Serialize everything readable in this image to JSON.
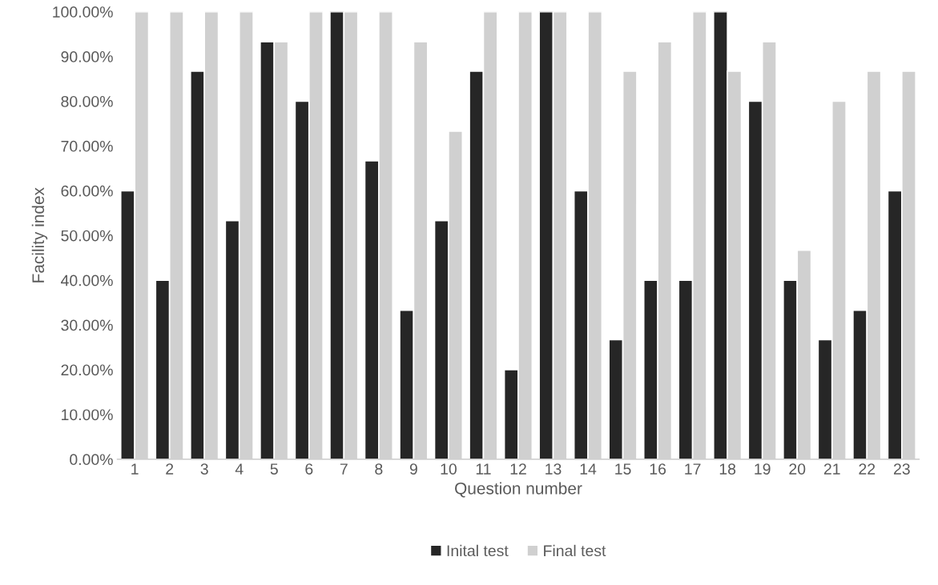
{
  "chart_data": {
    "type": "bar",
    "xlabel": "Question number",
    "ylabel": "Facility index",
    "categories": [
      "1",
      "2",
      "3",
      "4",
      "5",
      "6",
      "7",
      "8",
      "9",
      "10",
      "11",
      "12",
      "13",
      "14",
      "15",
      "16",
      "17",
      "18",
      "19",
      "20",
      "21",
      "22",
      "23"
    ],
    "series": [
      {
        "name": "Inital test",
        "color": "#262626",
        "values": [
          60,
          40,
          86.7,
          53.3,
          93.3,
          80,
          100,
          66.7,
          33.3,
          53.3,
          86.7,
          20,
          100,
          60,
          26.7,
          40,
          40,
          100,
          80,
          40,
          26.7,
          33.3,
          60
        ]
      },
      {
        "name": "Final test",
        "color": "#d0d0d0",
        "values": [
          100,
          100,
          100,
          100,
          93.3,
          100,
          100,
          100,
          93.3,
          73.3,
          100,
          100,
          100,
          100,
          86.7,
          93.3,
          100,
          86.7,
          93.3,
          46.7,
          80,
          86.7,
          86.7
        ]
      }
    ],
    "ylim": [
      0,
      100
    ],
    "yticks": [
      {
        "value": 0,
        "label": "0.00%"
      },
      {
        "value": 10,
        "label": "10.00%"
      },
      {
        "value": 20,
        "label": "20.00%"
      },
      {
        "value": 30,
        "label": "30.00%"
      },
      {
        "value": 40,
        "label": "40.00%"
      },
      {
        "value": 50,
        "label": "50.00%"
      },
      {
        "value": 60,
        "label": "60.00%"
      },
      {
        "value": 70,
        "label": "70.00%"
      },
      {
        "value": 80,
        "label": "80.00%"
      },
      {
        "value": 90,
        "label": "90.00%"
      },
      {
        "value": 100,
        "label": "100.00%"
      }
    ],
    "grid": false,
    "legend": "bottom"
  }
}
